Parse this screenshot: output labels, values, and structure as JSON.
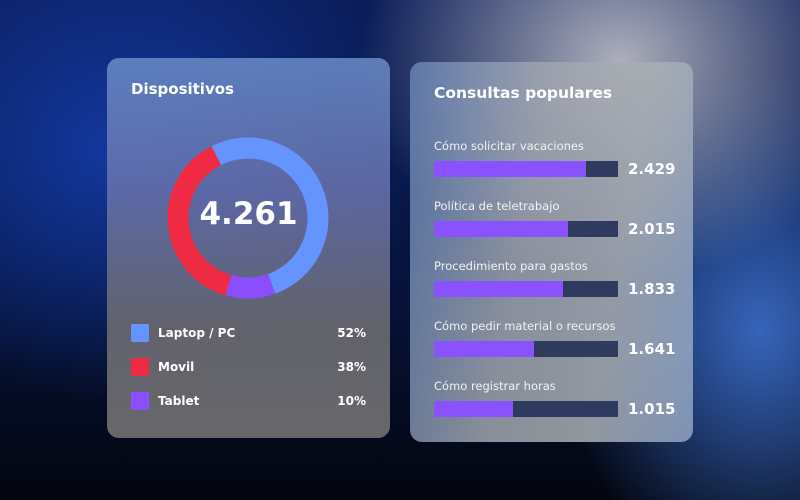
{
  "devices": {
    "title": "Dispositivos",
    "total": "4.261",
    "items": [
      {
        "label": "Laptop / PC",
        "pct": "52%",
        "value": 52,
        "color": "#6694ff"
      },
      {
        "label": "Movil",
        "pct": "38%",
        "value": 38,
        "color": "#ee2b43"
      },
      {
        "label": "Tablet",
        "pct": "10%",
        "value": 10,
        "color": "#8a4dff"
      }
    ]
  },
  "popular": {
    "title": "Consultas populares",
    "bar_color": "#8a52ff",
    "track_color": "#2e3a5e",
    "items": [
      {
        "label": "Cómo solicitar vacaciones",
        "value": "2.429",
        "fill_pct": 82.6
      },
      {
        "label": "Política de teletrabajo",
        "value": "2.015",
        "fill_pct": 72.8
      },
      {
        "label": "Procedimiento para gastos",
        "value": "1.833",
        "fill_pct": 70.1
      },
      {
        "label": "Cómo pedir material o recursos",
        "value": "1.641",
        "fill_pct": 54.3
      },
      {
        "label": "Cómo registrar horas",
        "value": "1.015",
        "fill_pct": 42.9
      }
    ]
  }
}
